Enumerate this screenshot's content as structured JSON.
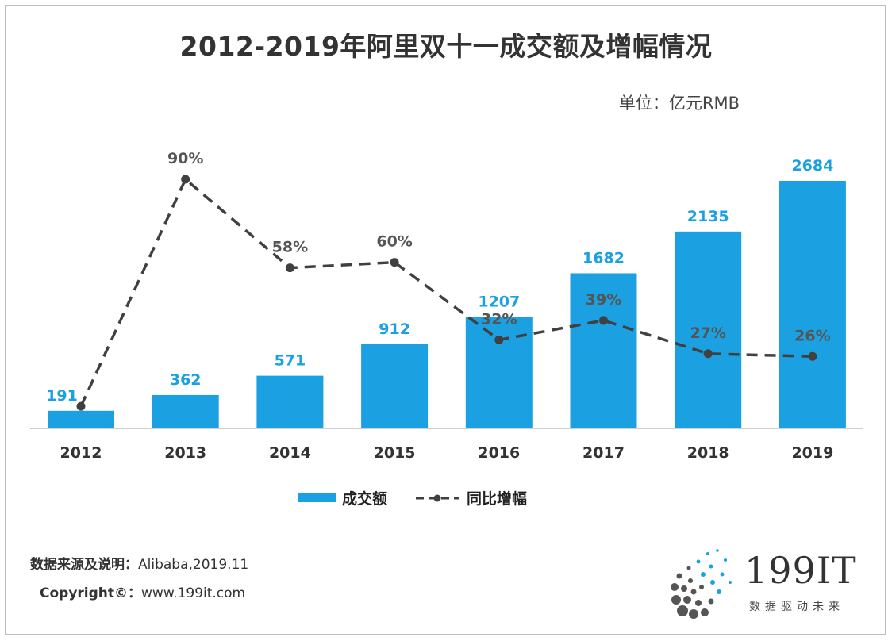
{
  "title": "2012-2019年阿里双十一成交额及增幅情况",
  "unit": "单位：亿元RMB",
  "colors": {
    "bar": "#1BA1E2",
    "line": "#404040",
    "value_label": "#1BA1E2",
    "pct_label": "#555555"
  },
  "chart_data": {
    "type": "bar",
    "categories": [
      "2012",
      "2013",
      "2014",
      "2015",
      "2016",
      "2017",
      "2018",
      "2019"
    ],
    "series": [
      {
        "name": "成交额",
        "type": "bar",
        "values": [
          191,
          362,
          571,
          912,
          1207,
          1682,
          2135,
          2684
        ],
        "labels": [
          "191",
          "362",
          "571",
          "912",
          "1207",
          "1682",
          "2135",
          "2684"
        ]
      },
      {
        "name": "同比增幅",
        "type": "line",
        "style": "dashed",
        "axis": "secondary",
        "values": [
          null,
          90,
          58,
          60,
          32,
          39,
          27,
          26
        ],
        "labels": [
          "",
          "90%",
          "58%",
          "60%",
          "32%",
          "39%",
          "27%",
          "26%"
        ]
      }
    ],
    "bar_ylim": [
      0,
      2684
    ],
    "line_ylim": [
      0,
      90
    ],
    "line_start_point_2012": 8,
    "legend": [
      "成交额",
      "同比增幅"
    ],
    "legend_position": "bottom-center",
    "grid": false
  },
  "footer": {
    "source_label": "数据来源及说明：",
    "source_value": "Alibaba,2019.11",
    "copyright_label": "Copyright©：",
    "copyright_value": "www.199it.com"
  },
  "brand": {
    "name": "199IT",
    "tagline": "数据驱动未来",
    "logo_icon": "dot-burst-logo-icon"
  }
}
